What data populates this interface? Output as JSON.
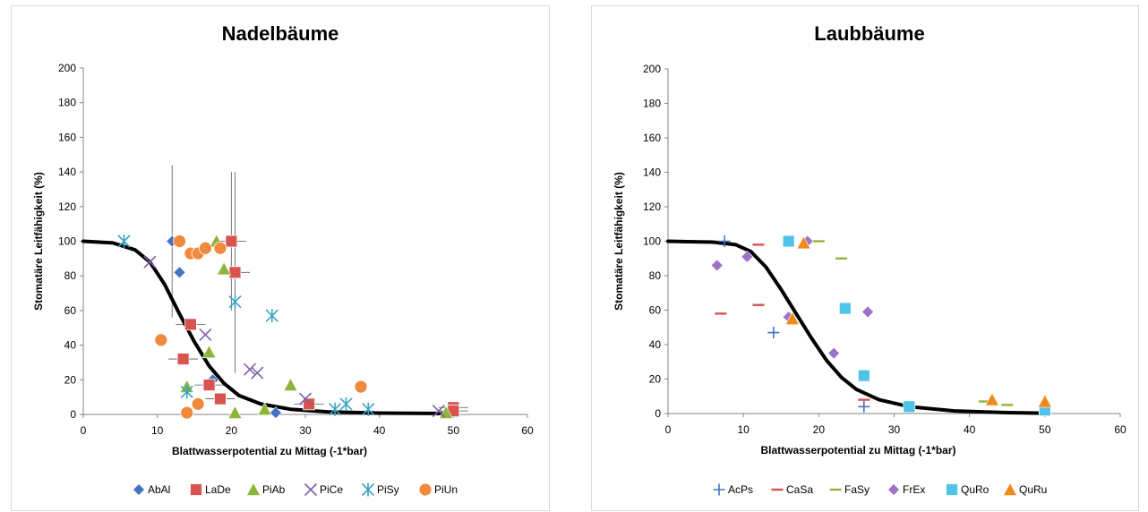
{
  "charts": [
    {
      "id": "left",
      "type": "scatter",
      "title": "Nadelbäume",
      "xlabel": "Blattwasserpotential zu Mittag (-1*bar)",
      "ylabel": "Stomatäre Leitfähigkeit (%)",
      "xlim": [
        0,
        60
      ],
      "ylim": [
        0,
        200
      ],
      "xticks": [
        "0",
        "10",
        "20",
        "30",
        "40",
        "50",
        "60"
      ],
      "yticks": [
        "0",
        "20",
        "40",
        "60",
        "80",
        "100",
        "120",
        "140",
        "160",
        "180",
        "200"
      ],
      "grid": false,
      "legend_position": "bottom",
      "fit_curve": {
        "color": "#000000",
        "points": [
          [
            0,
            100
          ],
          [
            4,
            99
          ],
          [
            7,
            95
          ],
          [
            9,
            88
          ],
          [
            11,
            75
          ],
          [
            13,
            58
          ],
          [
            15,
            42
          ],
          [
            17,
            28
          ],
          [
            19,
            18
          ],
          [
            21,
            11
          ],
          [
            24,
            6
          ],
          [
            28,
            3
          ],
          [
            33,
            1.5
          ],
          [
            40,
            0.8
          ],
          [
            50,
            0.5
          ]
        ]
      },
      "series": [
        {
          "name": "AbAl",
          "marker": "diamond",
          "color": "#4472C4",
          "points": [
            [
              12,
              100
            ],
            [
              13,
              82
            ],
            [
              17.5,
              20
            ],
            [
              26,
              1
            ]
          ],
          "errors": [
            [
              0,
              44,
              0
            ],
            [
              0,
              0,
              0
            ],
            [
              0,
              0,
              0
            ],
            [
              0,
              0,
              0
            ]
          ]
        },
        {
          "name": "LaDe",
          "marker": "square",
          "color": "#D9534F",
          "points": [
            [
              20,
              100
            ],
            [
              20.5,
              82
            ],
            [
              14.5,
              52
            ],
            [
              13.5,
              32
            ],
            [
              17,
              17
            ],
            [
              18.5,
              9
            ],
            [
              30.5,
              6
            ],
            [
              50,
              4
            ],
            [
              50,
              2
            ]
          ],
          "errors": [
            [
              2,
              40,
              0
            ],
            [
              2,
              58,
              0
            ],
            [
              2,
              0,
              0
            ],
            [
              2,
              0,
              0
            ],
            [
              2,
              0,
              0
            ],
            [
              2,
              0,
              0
            ],
            [
              2,
              0,
              0
            ],
            [
              2,
              0,
              0
            ],
            [
              2,
              0,
              0
            ]
          ]
        },
        {
          "name": "PiAb",
          "marker": "triangle",
          "color": "#8DB53A",
          "points": [
            [
              18,
              100
            ],
            [
              19,
              84
            ],
            [
              17,
              36
            ],
            [
              14,
              16
            ],
            [
              20.5,
              1
            ],
            [
              24.5,
              3
            ],
            [
              28,
              17
            ],
            [
              49,
              1
            ]
          ],
          "errors": [
            [
              0,
              0,
              0
            ],
            [
              0,
              0,
              0
            ],
            [
              0,
              0,
              0
            ],
            [
              0,
              0,
              0
            ],
            [
              0,
              0,
              0
            ],
            [
              0,
              0,
              0
            ],
            [
              0,
              0,
              0
            ],
            [
              0,
              0,
              0
            ]
          ]
        },
        {
          "name": "PiCe",
          "marker": "x",
          "color": "#7F5FA8",
          "points": [
            [
              9,
              88
            ],
            [
              16.5,
              46
            ],
            [
              22.5,
              26
            ],
            [
              23.5,
              24
            ],
            [
              30,
              9
            ],
            [
              48,
              2
            ]
          ],
          "errors": [
            [
              0,
              0,
              0
            ],
            [
              0,
              0,
              0
            ],
            [
              0,
              0,
              0
            ],
            [
              0,
              0,
              0
            ],
            [
              0,
              0,
              0
            ],
            [
              0,
              0,
              0
            ]
          ]
        },
        {
          "name": "PiSy",
          "marker": "star",
          "color": "#3BA3C6",
          "points": [
            [
              5.5,
              100
            ],
            [
              20.5,
              65
            ],
            [
              25.5,
              57
            ],
            [
              14,
              13
            ],
            [
              34,
              3
            ],
            [
              35.5,
              6
            ],
            [
              38.5,
              3
            ]
          ],
          "errors": [
            [
              0,
              0,
              0
            ],
            [
              0,
              0,
              0
            ],
            [
              0,
              0,
              0
            ],
            [
              0,
              0,
              0
            ],
            [
              0,
              0,
              0
            ],
            [
              0,
              0,
              0
            ],
            [
              0,
              0,
              0
            ]
          ]
        },
        {
          "name": "PiUn",
          "marker": "circle",
          "color": "#F08A3C",
          "points": [
            [
              13,
              100
            ],
            [
              14.5,
              93
            ],
            [
              15.5,
              93
            ],
            [
              16.5,
              96
            ],
            [
              18.5,
              96
            ],
            [
              10.5,
              43
            ],
            [
              14,
              1
            ],
            [
              15.5,
              6
            ],
            [
              37.5,
              16
            ]
          ],
          "errors": [
            [
              0,
              0,
              0
            ],
            [
              0,
              0,
              0
            ],
            [
              0,
              0,
              0
            ],
            [
              0,
              0,
              0
            ],
            [
              0,
              0,
              0
            ],
            [
              0,
              0,
              0
            ],
            [
              0,
              0,
              0
            ],
            [
              0,
              0,
              0
            ],
            [
              0,
              0,
              0
            ]
          ]
        }
      ]
    },
    {
      "id": "right",
      "type": "scatter",
      "title": "Laubbäume",
      "xlabel": "Blattwasserpotential zu Mittag (-1*bar)",
      "ylabel": "Stomatäre Leitfähigkeit (%)",
      "xlim": [
        0,
        60
      ],
      "ylim": [
        0,
        200
      ],
      "xticks": [
        "0",
        "10",
        "20",
        "30",
        "40",
        "50",
        "60"
      ],
      "yticks": [
        "0",
        "20",
        "40",
        "60",
        "80",
        "100",
        "120",
        "140",
        "160",
        "180",
        "200"
      ],
      "grid": false,
      "legend_position": "bottom",
      "fit_curve": {
        "color": "#000000",
        "points": [
          [
            0,
            100
          ],
          [
            6,
            99.5
          ],
          [
            9,
            98
          ],
          [
            11,
            94
          ],
          [
            13,
            85
          ],
          [
            15,
            72
          ],
          [
            17,
            58
          ],
          [
            19,
            44
          ],
          [
            21,
            31
          ],
          [
            23,
            21
          ],
          [
            25,
            14
          ],
          [
            28,
            8
          ],
          [
            32,
            4
          ],
          [
            38,
            1.5
          ],
          [
            45,
            0.5
          ],
          [
            50,
            0.2
          ]
        ]
      },
      "series": [
        {
          "name": "AcPs",
          "marker": "plus",
          "color": "#4472C4",
          "points": [
            [
              7.5,
              100
            ],
            [
              14,
              47
            ],
            [
              26,
              4
            ]
          ],
          "errors": [
            [
              0,
              0,
              0
            ],
            [
              0,
              0,
              0
            ],
            [
              0,
              0,
              0
            ]
          ]
        },
        {
          "name": "CaSa",
          "marker": "dash",
          "color": "#D9534F",
          "points": [
            [
              7,
              58
            ],
            [
              12,
              63
            ],
            [
              12,
              98
            ],
            [
              26,
              8
            ]
          ],
          "errors": [
            [
              0,
              0,
              0
            ],
            [
              0,
              0,
              0
            ],
            [
              0,
              0,
              0
            ],
            [
              0,
              0,
              0
            ]
          ]
        },
        {
          "name": "FaSy",
          "marker": "dash",
          "color": "#8DB53A",
          "points": [
            [
              20,
              100
            ],
            [
              23,
              90
            ],
            [
              42,
              7
            ],
            [
              45,
              5
            ]
          ],
          "errors": [
            [
              0,
              0,
              0
            ],
            [
              0,
              0,
              0
            ],
            [
              0,
              0,
              0
            ],
            [
              0,
              0,
              0
            ]
          ]
        },
        {
          "name": "FrEx",
          "marker": "diamond",
          "color": "#9B72C7",
          "points": [
            [
              6.5,
              86
            ],
            [
              10.5,
              91
            ],
            [
              16,
              56
            ],
            [
              18.5,
              100
            ],
            [
              22,
              35
            ],
            [
              26.5,
              59
            ]
          ],
          "errors": [
            [
              0,
              0,
              0
            ],
            [
              0,
              0,
              0
            ],
            [
              0,
              0,
              0
            ],
            [
              0,
              0,
              0
            ],
            [
              0,
              0,
              0
            ],
            [
              0,
              0,
              0
            ]
          ]
        },
        {
          "name": "QuRo",
          "marker": "square",
          "color": "#4FC3E8",
          "points": [
            [
              16,
              100
            ],
            [
              23.5,
              61
            ],
            [
              26,
              22
            ],
            [
              32,
              4
            ],
            [
              50,
              2
            ]
          ],
          "errors": [
            [
              0,
              0,
              0
            ],
            [
              0,
              0,
              0
            ],
            [
              0,
              0,
              0
            ],
            [
              0,
              0,
              0
            ],
            [
              0,
              0,
              0
            ]
          ]
        },
        {
          "name": "QuRu",
          "marker": "triangle",
          "color": "#F08A1C",
          "points": [
            [
              18,
              99
            ],
            [
              16.5,
              55
            ],
            [
              43,
              8
            ],
            [
              50,
              7
            ]
          ],
          "errors": [
            [
              0,
              0,
              0
            ],
            [
              0,
              0,
              0
            ],
            [
              0,
              0,
              0
            ],
            [
              0,
              0,
              0
            ]
          ]
        }
      ]
    }
  ]
}
